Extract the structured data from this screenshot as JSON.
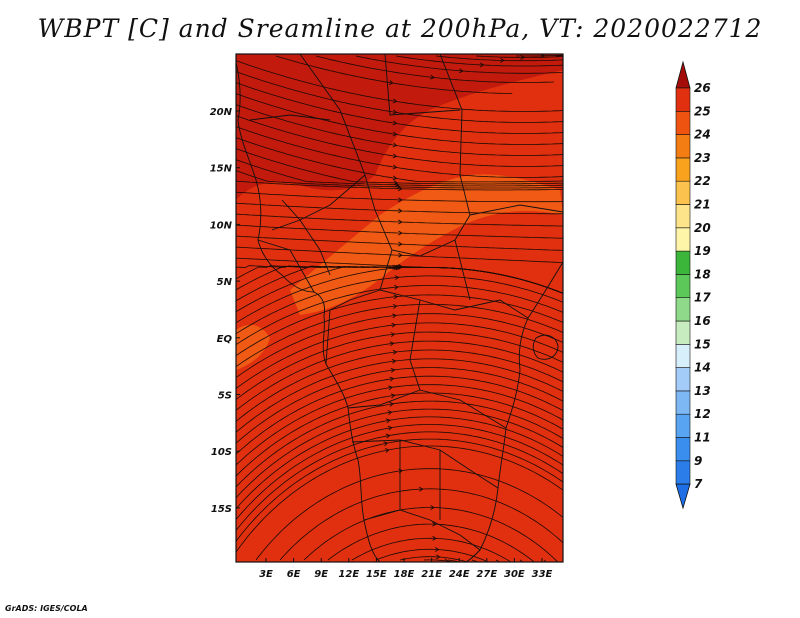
{
  "title": "WBPT [C] and Sreamline at 200hPa, VT: 2020022712",
  "credit": "GrADS: IGES/COLA",
  "map": {
    "lon_labels": [
      "3E",
      "6E",
      "9E",
      "12E",
      "15E",
      "18E",
      "21E",
      "24E",
      "27E",
      "30E",
      "33E"
    ],
    "lat_labels": [
      "20N",
      "15N",
      "10N",
      "5N",
      "EQ",
      "5S",
      "10S",
      "15S"
    ],
    "fill_colors": {
      "main": "#e0300f",
      "dark": "#c21a0c",
      "light": "#f05a14"
    }
  },
  "colorbar": {
    "levels": [
      "7",
      "9",
      "11",
      "12",
      "13",
      "14",
      "15",
      "16",
      "17",
      "18",
      "19",
      "20",
      "21",
      "22",
      "23",
      "24",
      "25",
      "26"
    ],
    "colors": [
      "#1e6ee6",
      "#2b7de9",
      "#3a8fee",
      "#58a3f2",
      "#7db8f5",
      "#a3ccf8",
      "#d6effa",
      "#c6ecc0",
      "#8fd98a",
      "#5cc85a",
      "#3bb53a",
      "#fef5a8",
      "#fde38a",
      "#fbc24d",
      "#f8a21e",
      "#f37d12",
      "#ee540f",
      "#e0300f",
      "#c21a0c",
      "#a30c08"
    ]
  }
}
